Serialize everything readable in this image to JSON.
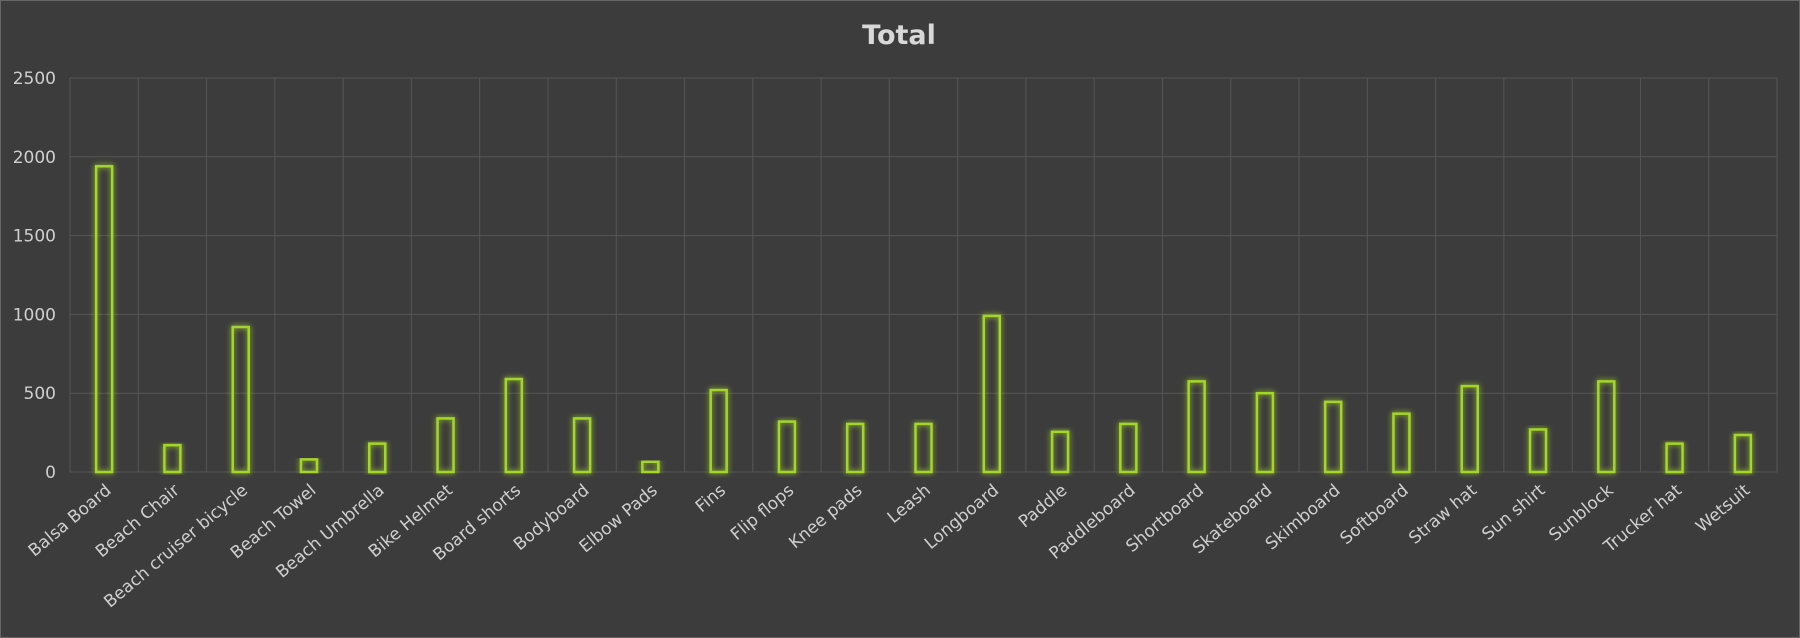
{
  "chart_data": {
    "type": "bar",
    "title": "Total",
    "xlabel": "",
    "ylabel": "",
    "ylim": [
      0,
      2500
    ],
    "yticks": [
      0,
      500,
      1000,
      1500,
      2000,
      2500
    ],
    "grid": true,
    "legend": "none",
    "bar_color": "#a4d62c",
    "background": "#3c3c3c",
    "categories": [
      "Balsa Board",
      "Beach Chair",
      "Beach cruiser bicycle",
      "Beach Towel",
      "Beach Umbrella",
      "Bike Helmet",
      "Board shorts",
      "Bodyboard",
      "Elbow Pads",
      "Fins",
      "Flip flops",
      "Knee pads",
      "Leash",
      "Longboard",
      "Paddle",
      "Paddleboard",
      "Shortboard",
      "Skateboard",
      "Skimboard",
      "Softboard",
      "Straw hat",
      "Sun shirt",
      "Sunblock",
      "Trucker hat",
      "Wetsuit"
    ],
    "values": [
      1940,
      170,
      920,
      80,
      180,
      340,
      590,
      340,
      65,
      520,
      320,
      305,
      305,
      990,
      255,
      305,
      575,
      500,
      445,
      370,
      545,
      270,
      575,
      180,
      235
    ]
  }
}
